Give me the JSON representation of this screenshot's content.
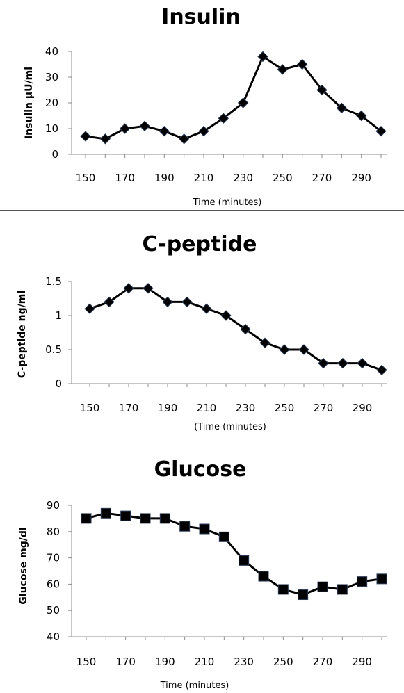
{
  "chart_data": [
    {
      "type": "line",
      "title": "Insulin",
      "xlabel": "Time (minutes)",
      "ylabel": "Insulin µU/ml",
      "x": [
        150,
        160,
        170,
        180,
        190,
        200,
        210,
        220,
        230,
        240,
        250,
        260,
        270,
        280,
        290,
        300
      ],
      "series": [
        {
          "values": [
            7,
            6,
            10,
            11,
            9,
            6,
            9,
            14,
            20,
            38,
            33,
            35,
            25,
            18,
            15,
            9
          ]
        }
      ],
      "xlim": [
        150,
        300
      ],
      "ylim": [
        0,
        40
      ],
      "x_ticks": [
        "150",
        "170",
        "190",
        "210",
        "230",
        "250",
        "270",
        "290"
      ],
      "y_ticks": [
        "0",
        "10",
        "20",
        "30",
        "40"
      ],
      "marker": "diamond",
      "line_color": "#000000",
      "marker_color": "#000000",
      "grid": false
    },
    {
      "type": "line",
      "title": "C-peptide",
      "xlabel": "(Time (minutes)",
      "ylabel": "C-peptide ng/ml",
      "x": [
        150,
        160,
        170,
        180,
        190,
        200,
        210,
        220,
        230,
        240,
        250,
        260,
        270,
        280,
        290,
        300
      ],
      "series": [
        {
          "values": [
            1.1,
            1.2,
            1.4,
            1.4,
            1.2,
            1.2,
            1.1,
            1.0,
            0.8,
            0.6,
            0.5,
            0.5,
            0.3,
            0.3,
            0.3,
            0.2
          ]
        }
      ],
      "xlim": [
        150,
        300
      ],
      "ylim": [
        0,
        1.5
      ],
      "x_ticks": [
        "150",
        "170",
        "190",
        "210",
        "230",
        "250",
        "270",
        "290"
      ],
      "y_ticks": [
        "0",
        "0.5",
        "1",
        "1.5"
      ],
      "marker": "diamond",
      "line_color": "#000000",
      "marker_color": "#000000",
      "grid": false
    },
    {
      "type": "line",
      "title": "Glucose",
      "xlabel": "Time (minutes)",
      "ylabel": "Glucose mg/dl",
      "x": [
        150,
        160,
        170,
        180,
        190,
        200,
        210,
        220,
        230,
        240,
        250,
        260,
        270,
        280,
        290,
        300
      ],
      "series": [
        {
          "values": [
            85,
            87,
            86,
            85,
            85,
            82,
            81,
            78,
            69,
            63,
            58,
            56,
            59,
            58,
            61,
            62
          ]
        }
      ],
      "xlim": [
        150,
        300
      ],
      "ylim": [
        40,
        90
      ],
      "x_ticks": [
        "150",
        "170",
        "190",
        "210",
        "230",
        "250",
        "270",
        "290"
      ],
      "y_ticks": [
        "40",
        "50",
        "60",
        "70",
        "80",
        "90"
      ],
      "marker": "square",
      "line_color": "#000000",
      "marker_color": "#000000",
      "grid": false
    }
  ]
}
